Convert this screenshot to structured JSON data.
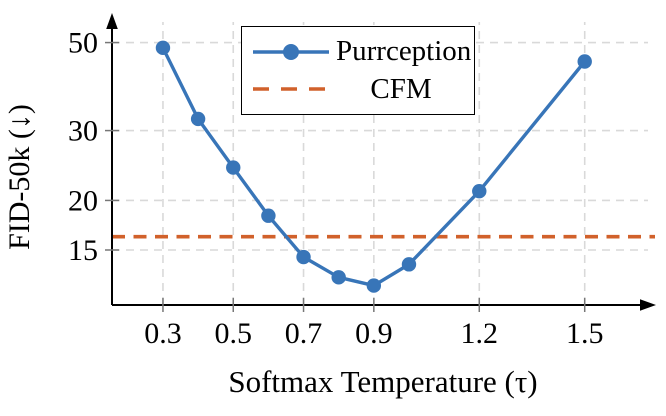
{
  "chart_data": {
    "type": "line",
    "title": "",
    "xlabel": "Softmax Temperature (τ)",
    "ylabel": "FID-50k (↓)",
    "x_scale": "linear",
    "y_scale": "log",
    "xlim": [
      0.155,
      1.7
    ],
    "ylim": [
      10.9,
      57
    ],
    "x_ticks": [
      0.3,
      0.5,
      0.7,
      0.9,
      1.2,
      1.5
    ],
    "x_tick_labels": [
      "0.3",
      "0.5",
      "0.7",
      "0.9",
      "1.2",
      "1.5"
    ],
    "y_ticks": [
      50,
      30,
      20,
      15
    ],
    "y_tick_labels": [
      "50",
      "30",
      "20",
      "15"
    ],
    "grid": true,
    "legend_position": "top-right-inside",
    "series": [
      {
        "name": "Purrception",
        "type": "line-markers",
        "color": "#3875b8",
        "x": [
          0.3,
          0.4,
          0.5,
          0.6,
          0.7,
          0.8,
          0.9,
          1.0,
          1.2,
          1.5
        ],
        "y": [
          48.5,
          32.1,
          24.2,
          18.3,
          14.4,
          12.8,
          12.2,
          13.8,
          21.1,
          44.8
        ]
      },
      {
        "name": "CFM",
        "type": "hline-dashed",
        "color": "#d1612b",
        "y": 16.2
      }
    ]
  },
  "colors": {
    "purrception_blue": "#3875b8",
    "cfm_orange": "#d1612b",
    "gridline_gray": "#d9d9d9",
    "axis_black": "#000000"
  }
}
